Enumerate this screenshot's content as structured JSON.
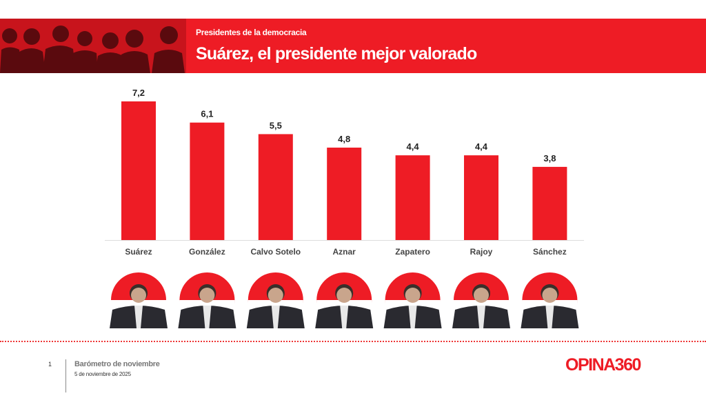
{
  "header": {
    "subtitle": "Presidentes de la democracia",
    "title": "Suárez, el presidente mejor valorado"
  },
  "chart_data": {
    "type": "bar",
    "title": "Suárez, el presidente mejor valorado",
    "categories": [
      "Suárez",
      "González",
      "Calvo Sotelo",
      "Aznar",
      "Zapatero",
      "Rajoy",
      "Sánchez"
    ],
    "values": [
      7.2,
      6.1,
      5.5,
      4.8,
      4.4,
      4.4,
      3.8
    ],
    "value_labels": [
      "7,2",
      "6,1",
      "5,5",
      "4,8",
      "4,4",
      "4,4",
      "3,8"
    ],
    "bar_color": "#ee1c25",
    "grid": false,
    "ylim": [
      0,
      7.2
    ]
  },
  "footer": {
    "page": "1",
    "title": "Barómetro de noviembre",
    "date": "5 de noviembre de 2025",
    "logo": "OPINA360"
  },
  "colors": {
    "accent": "#ee1c25"
  }
}
